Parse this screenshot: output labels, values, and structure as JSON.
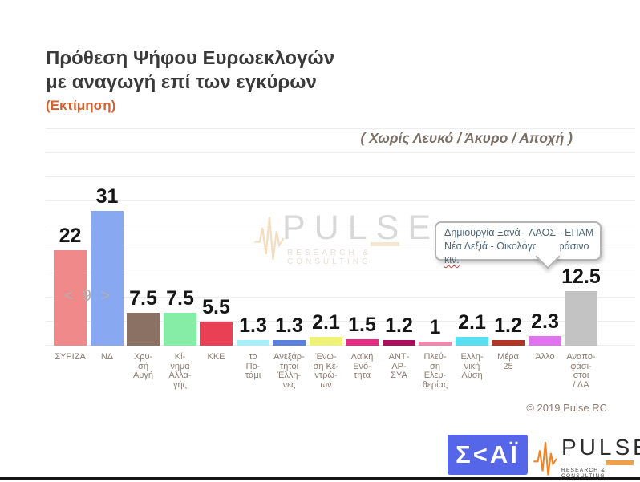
{
  "header": {
    "title_line1": "Πρόθεση Ψήφου Ευρωεκλογών",
    "title_line2": "με αναγωγή επί των εγκύρων",
    "estimate_label": "(Εκτίμηση)",
    "filter_note": "( Χωρίς Λευκό / Άκυρο / Αποχή )"
  },
  "chart_data": {
    "type": "bar",
    "title": "Πρόθεση Ψήφου Ευρωεκλογών με αναγωγή επί των εγκύρων (Εκτίμηση)",
    "categories": [
      "ΣΥΡΙΖΑ",
      "ΝΔ",
      "Χρυσή Αυγή",
      "Κίνημα Αλλαγής",
      "ΚΚΕ",
      "το Ποτάμι",
      "Ανεξάρτητοι Έλληνες",
      "Ένωση Κεντρώων",
      "Λαϊκή Ενότητα",
      "ΑΝΤ-ΑΡ-ΣΥΑ",
      "Πλεύση Ελευθερίας",
      "Ελληνική Λύση",
      "Μέρα 25",
      "Άλλο",
      "Αναποφάσιστοι / ΔΑ"
    ],
    "values": [
      22,
      31,
      7.5,
      7.5,
      5.5,
      1.3,
      1.3,
      2.1,
      1.5,
      1.2,
      1,
      2.1,
      1.2,
      2.3,
      12.5
    ],
    "value_labels": [
      "22",
      "31",
      "7.5",
      "7.5",
      "5.5",
      "1.3",
      "1.3",
      "2.1",
      "1.5",
      "1.2",
      "1",
      "2.1",
      "1.2",
      "2.3",
      "12.5"
    ],
    "colors": [
      "#f08a8a",
      "#88a8f2",
      "#8b7164",
      "#85eda6",
      "#e94055",
      "#a5f0fa",
      "#5c80de",
      "#eef277",
      "#e82c85",
      "#ae0e5e",
      "#f287ae",
      "#58dff2",
      "#b23527",
      "#e273f0",
      "#c3c3c3"
    ],
    "label_lines": [
      [
        "ΣΥΡΙΖΑ"
      ],
      [
        "ΝΔ"
      ],
      [
        "Χρυ-",
        "σή",
        "Αυγή"
      ],
      [
        "Κί-",
        "νημα",
        "Αλλα-",
        "γής"
      ],
      [
        "ΚΚΕ"
      ],
      [
        "το",
        "Πο-",
        "τάμι"
      ],
      [
        "Ανεξάρ-",
        "τητοι",
        "Έλλη-",
        "νες"
      ],
      [
        "Ένω-",
        "ση Κε-",
        "ντρώ-",
        "ων"
      ],
      [
        "Λαϊκή",
        "Ενό-",
        "τητα"
      ],
      [
        "ΑΝΤ-",
        "ΑΡ-",
        "ΣΥΑ"
      ],
      [
        "Πλεύ-",
        "ση",
        "Ελευ-",
        "θερίας"
      ],
      [
        "Ελλη-",
        "νική",
        "Λύση"
      ],
      [
        "Μέρα",
        "25"
      ],
      [
        "Άλλο"
      ],
      [
        "Αναπο-",
        "φάσι-",
        "στοι",
        "/ ΔΑ"
      ]
    ],
    "ylim": [
      0,
      34
    ],
    "grid": true,
    "legend": "none",
    "gap_annotation": "< 9 >",
    "tooltip": {
      "line1": "Δημιουργία Ξανά - ΛΑΟΣ - ΕΠΑΜ",
      "line2_prefix": "Νέα Δεξιά - Οικολόγοι – Πράσινο ",
      "line2_misspelled": "κιν."
    },
    "copyright": "© 2019 Pulse RC"
  },
  "watermark": {
    "brand": "PULSE",
    "sub": "RESEARCH & CONSULTING"
  },
  "footer": {
    "skai_text": "Σ<ΑΪ",
    "pulse_brand": "PULSE",
    "pulse_sub": "RESEARCH & CONSULTING"
  }
}
